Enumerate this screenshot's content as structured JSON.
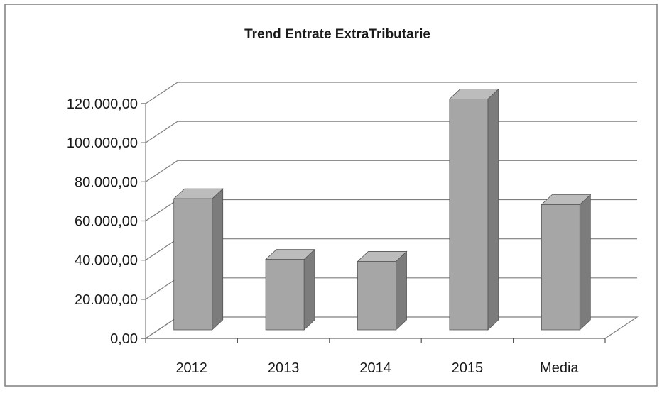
{
  "chart_data": {
    "type": "bar",
    "title": "Trend Entrate ExtraTributarie",
    "categories": [
      "2012",
      "2013",
      "2014",
      "2015",
      "Media"
    ],
    "values": [
      67000,
      36000,
      35000,
      118000,
      64000
    ],
    "yticks": [
      "0,00",
      "20.000,00",
      "40.000,00",
      "60.000,00",
      "80.000,00",
      "100.000,00",
      "120.000,00"
    ],
    "ylim": [
      0,
      120000
    ],
    "xlabel": "",
    "ylabel": "",
    "grid": true,
    "legend": "none",
    "style": "3d-column",
    "colors": {
      "bar_front": "#a6a6a6",
      "bar_side": "#7c7c7c",
      "bar_top": "#bcbcbc",
      "grid": "#7f7f7f"
    }
  }
}
